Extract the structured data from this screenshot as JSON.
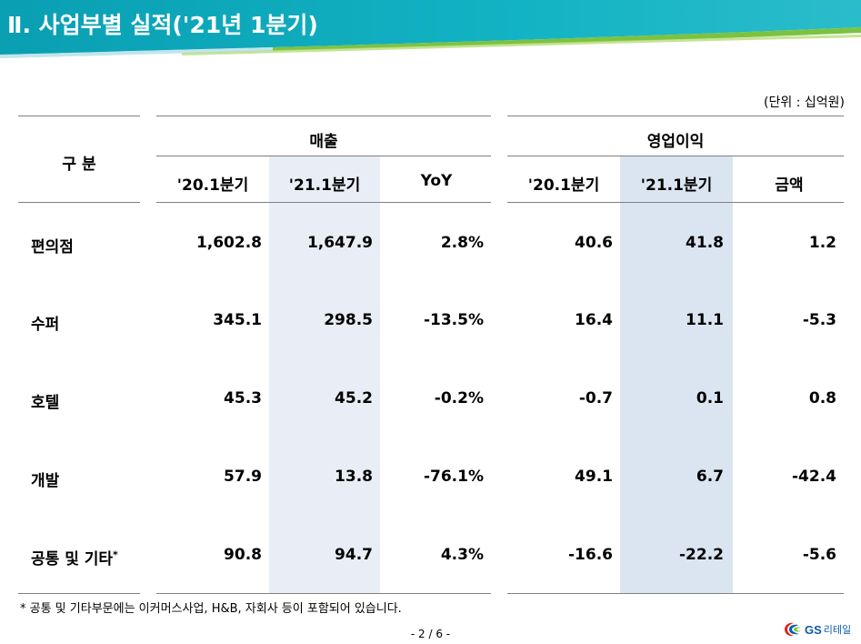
{
  "header": {
    "title": "Ⅱ. 사업부별 실적('21년 1분기)"
  },
  "unit": "(단위 : 십억원)",
  "table": {
    "category_header": "구 분",
    "groups": [
      {
        "label": "매출",
        "columns": [
          "'20.1분기",
          "'21.1분기",
          "YoY"
        ]
      },
      {
        "label": "영업이익",
        "columns": [
          "'20.1분기",
          "'21.1분기",
          "금액"
        ]
      }
    ],
    "rows": [
      {
        "label": "편의점",
        "sup": "",
        "values": [
          "1,602.8",
          "1,647.9",
          "2.8%",
          "40.6",
          "41.8",
          "1.2"
        ]
      },
      {
        "label": "수퍼",
        "sup": "",
        "values": [
          "345.1",
          "298.5",
          "-13.5%",
          "16.4",
          "11.1",
          "-5.3"
        ]
      },
      {
        "label": "호텔",
        "sup": "",
        "values": [
          "45.3",
          "45.2",
          "-0.2%",
          "-0.7",
          "0.1",
          "0.8"
        ]
      },
      {
        "label": "개발",
        "sup": "",
        "values": [
          "57.9",
          "13.8",
          "-76.1%",
          "49.1",
          "6.7",
          "-42.4"
        ]
      },
      {
        "label": "공통 및 기타",
        "sup": "*",
        "values": [
          "90.8",
          "94.7",
          "4.3%",
          "-16.6",
          "-22.2",
          "-5.6"
        ]
      }
    ]
  },
  "footnote": "* 공통 및 기타부문에는 이커머스사업, H&B, 자회사 등이 포함되어 있습니다.",
  "page_number": "- 2 / 6 -",
  "logo": {
    "mark": "GS",
    "text": "리테일"
  },
  "colors": {
    "header_teal": "#00a3b4",
    "header_green": "#7cc242",
    "highlight_sales": "#e9eef6",
    "highlight_op": "#dbe5f1",
    "logo_blue": "#0b5aa8"
  }
}
